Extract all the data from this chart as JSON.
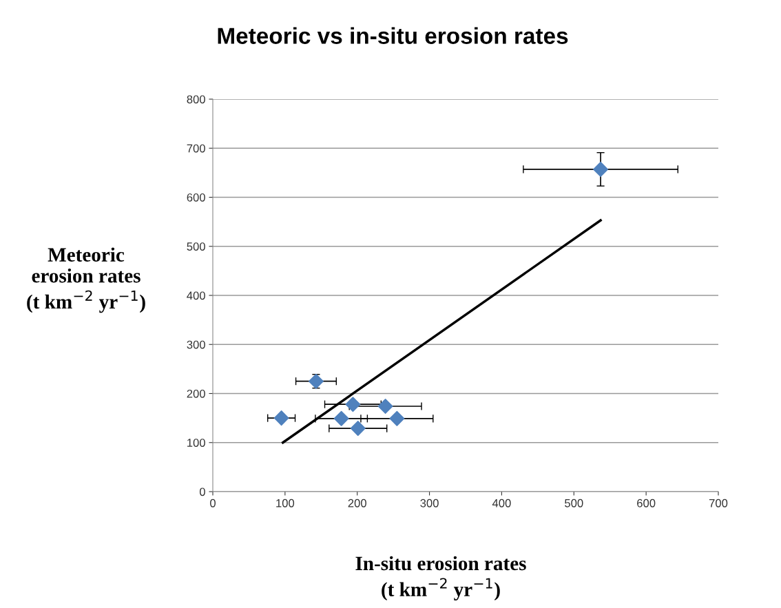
{
  "chart_data": {
    "type": "scatter",
    "title": "Meteoric vs in-situ erosion rates",
    "xlabel": "In-situ erosion rates\n(t km$^{−2}$ yr$^{−1}$)",
    "ylabel": "Meteoric\nerosion rates\n(t km$^{−2}$ yr$^{−1}$)",
    "xlim": [
      0,
      700
    ],
    "xticks": [
      0,
      100,
      200,
      300,
      400,
      500,
      600,
      700
    ],
    "ylim": [
      0,
      800
    ],
    "yticks": [
      0,
      100,
      200,
      300,
      400,
      500,
      600,
      700,
      800
    ],
    "grid": "y",
    "legend": false,
    "series": [
      {
        "color": "#4f81bd",
        "marker": "diamond",
        "x": [
          143,
          95,
          194,
          239,
          178,
          255,
          201,
          537
        ],
        "values": [
          225,
          150,
          178,
          174,
          149,
          149,
          129,
          657
        ],
        "xerrors": [
          28,
          19,
          39,
          50,
          36,
          50,
          40,
          107
        ],
        "errors": [
          14,
          null,
          null,
          null,
          null,
          null,
          null,
          34
        ]
      },
      {
        "type": "line",
        "color": "#000000",
        "marker": "none",
        "line_style": "solid",
        "x": [
          97,
          537
        ],
        "values": [
          100,
          553
        ]
      }
    ]
  }
}
